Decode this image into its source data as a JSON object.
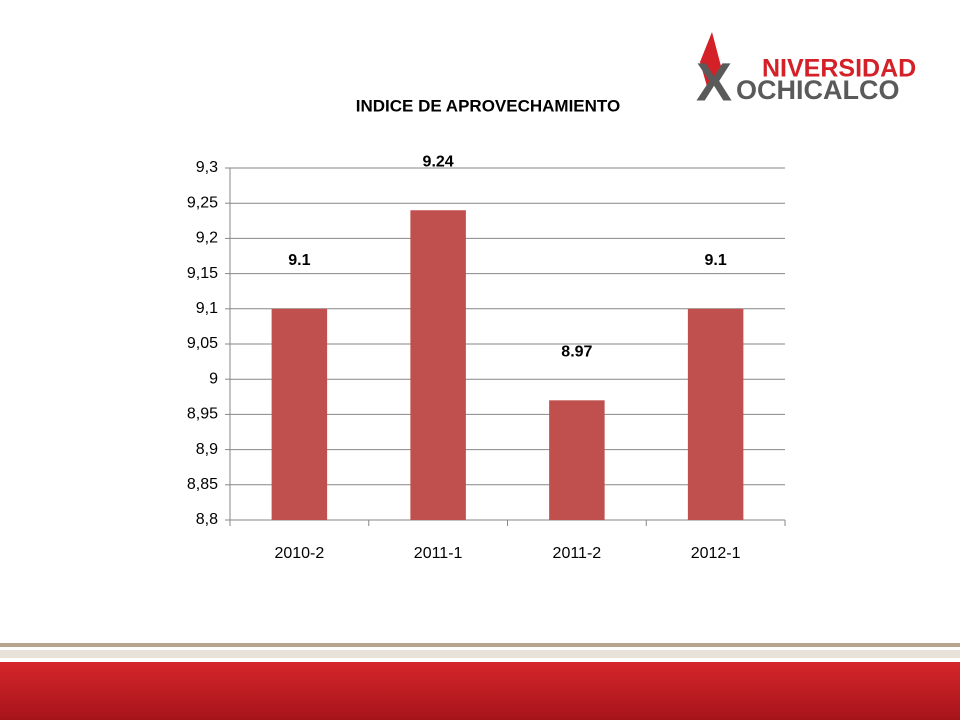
{
  "logo": {
    "mark": "X",
    "top": "NIVERSIDAD",
    "bottom": "OCHICALCO"
  },
  "chart_data": {
    "type": "bar",
    "title": "INDICE DE APROVECHAMIENTO",
    "categories": [
      "2010-2",
      "2011-1",
      "2011-2",
      "2012-1"
    ],
    "values": [
      9.1,
      9.24,
      8.97,
      9.1
    ],
    "color": "#c0504d",
    "ylim": [
      8.8,
      9.3
    ],
    "yticks": [
      {
        "value": 8.8,
        "label": "8,8"
      },
      {
        "value": 8.85,
        "label": "8,85"
      },
      {
        "value": 8.9,
        "label": "8,9"
      },
      {
        "value": 8.95,
        "label": "8,95"
      },
      9,
      {
        "value": 9.05,
        "label": "9,05"
      },
      {
        "value": 9.1,
        "label": "9,1"
      },
      {
        "value": 9.15,
        "label": "9,15"
      },
      {
        "value": 9.2,
        "label": "9,2"
      },
      {
        "value": 9.25,
        "label": "9,25"
      },
      {
        "value": 9.3,
        "label": "9,3"
      }
    ],
    "grid": true
  }
}
